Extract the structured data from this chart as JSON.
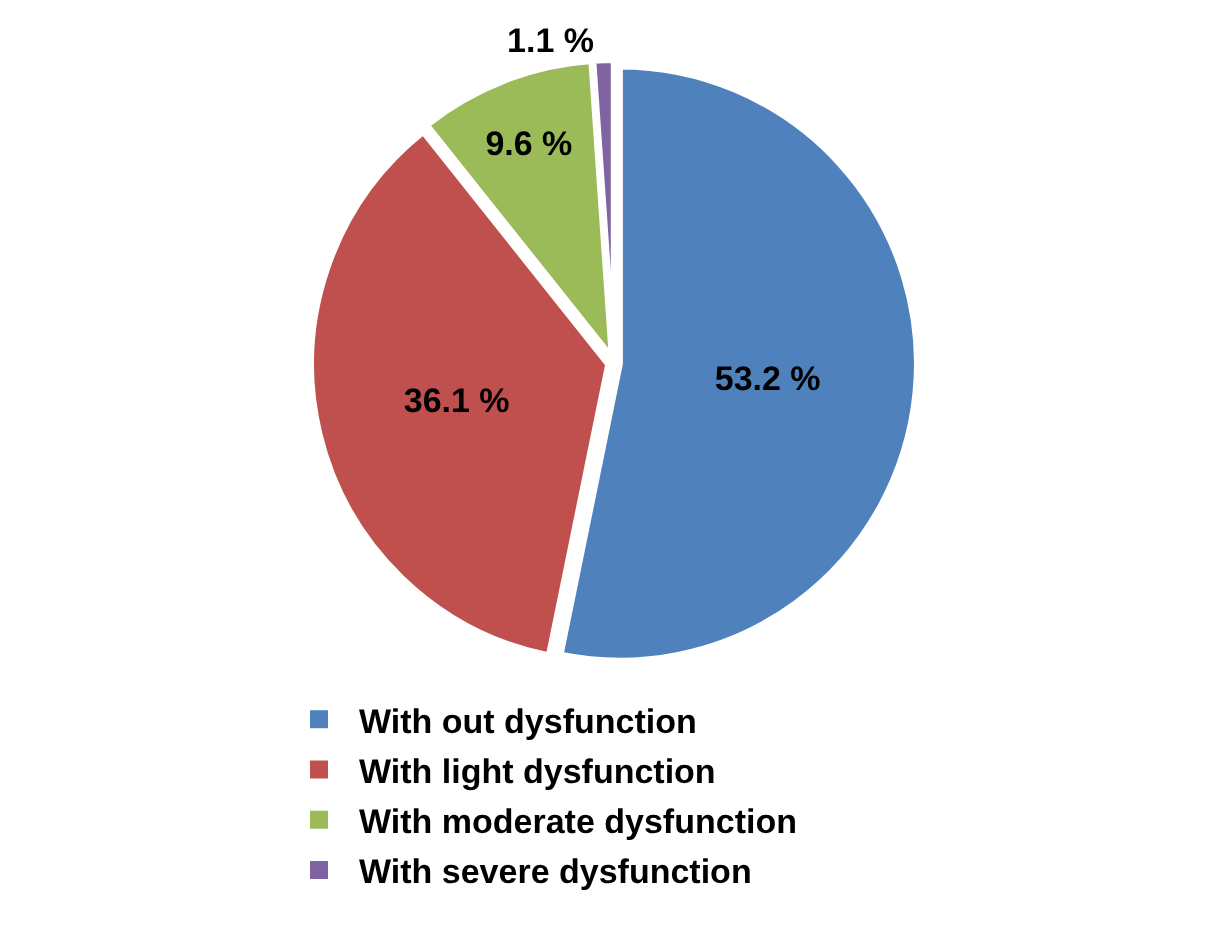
{
  "chart_data": {
    "type": "pie",
    "categories": [
      "With out dysfunction",
      "With light dysfunction",
      "With moderate dysfunction",
      "With severe dysfunction"
    ],
    "values": [
      53.2,
      36.1,
      9.6,
      1.1
    ],
    "colors": [
      "#4f81bd",
      "#c0504d",
      "#9bbb59",
      "#8064a2"
    ],
    "value_labels": [
      "53.2 %",
      "36.1 %",
      "9.6 %",
      "1.1 %"
    ],
    "legend": "bottom"
  }
}
